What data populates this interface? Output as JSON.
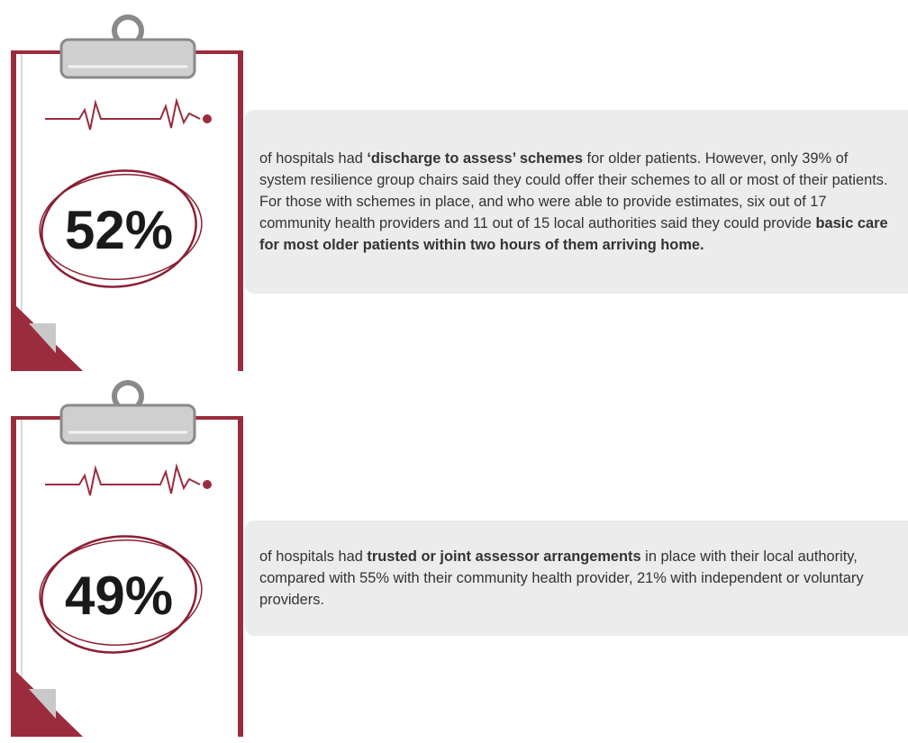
{
  "panels": [
    {
      "stat": "52%",
      "text": [
        {
          "text": "of hospitals had "
        },
        {
          "text": "‘discharge to assess’ schemes",
          "bold": true
        },
        {
          "text": " for older patients. However, only 39% of system resilience group chairs said they could offer their schemes to all or most of their patients. For those with schemes in place, and who were able to provide estimates, six out of 17 community health providers and 11 out of 15 local authorities said they could provide "
        },
        {
          "text": "basic care for most older patients within two hours of them arriving home.",
          "bold": true
        }
      ]
    },
    {
      "stat": "49%",
      "text": [
        {
          "text": "of hospitals had "
        },
        {
          "text": "trusted or joint assessor arrangements",
          "bold": true
        },
        {
          "text": " in place with their local authority, compared with 55% with their community health provider, 21% with independent or voluntary providers."
        }
      ]
    }
  ]
}
